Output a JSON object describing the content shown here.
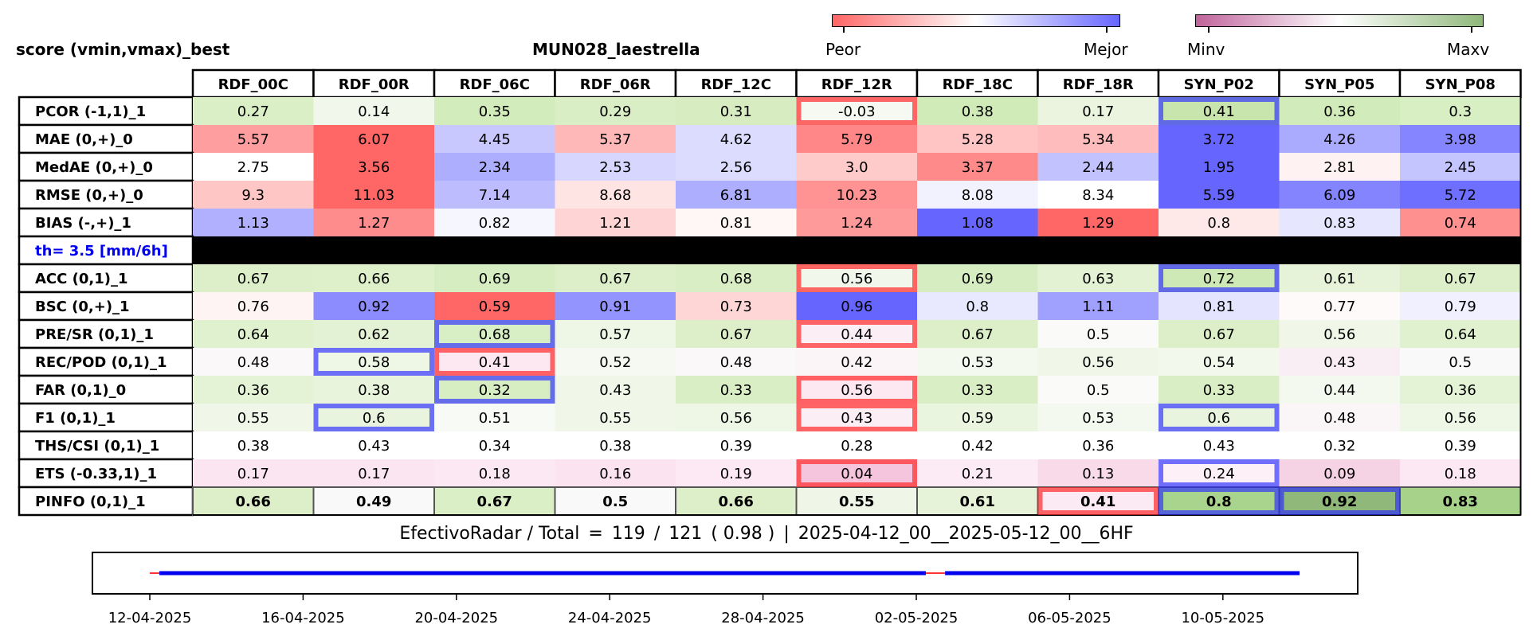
{
  "header": {
    "left_title": "score (vmin,vmax)_best",
    "center_title": "MUN028_laestrella"
  },
  "colorbars": [
    {
      "name": "peor-mejor",
      "left_label": "Peor",
      "right_label": "Mejor",
      "colors": [
        "#ff6666",
        "#ffffff",
        "#6666ff"
      ]
    },
    {
      "name": "minv-maxv",
      "left_label": "Minv",
      "right_label": "Maxv",
      "colors": [
        "#c0649c",
        "#ffffff",
        "#8fb87a"
      ]
    }
  ],
  "chart_data": [
    {
      "type": "table",
      "columns": [
        "RDF_00C",
        "RDF_00R",
        "RDF_06C",
        "RDF_06R",
        "RDF_12C",
        "RDF_12R",
        "RDF_18C",
        "RDF_18R",
        "SYN_P02",
        "SYN_P05",
        "SYN_P08"
      ],
      "rows": [
        {
          "label": "PCOR (-1,1)_1",
          "values": [
            "0.27",
            "0.14",
            "0.35",
            "0.29",
            "0.31",
            "-0.03",
            "0.38",
            "0.17",
            "0.41",
            "0.36",
            "0.3"
          ],
          "fills": [
            "#dbefc6",
            "#f1f7ea",
            "#d3ecbc",
            "#d9eec4",
            "#d7edc1",
            "#f5f9f1",
            "#d0eab8",
            "#eaf4de",
            "#c8e5ad",
            "#d2ebba",
            "#d8eec3"
          ],
          "highlights": [
            {
              "col": 5,
              "color": "red"
            },
            {
              "col": 8,
              "color": "blue"
            }
          ]
        },
        {
          "label": "MAE (0,+)_0",
          "values": [
            "5.57",
            "6.07",
            "4.45",
            "5.37",
            "4.62",
            "5.79",
            "5.28",
            "5.34",
            "3.72",
            "4.26",
            "3.98"
          ],
          "fills": [
            "#ff9e9e",
            "#ff6666",
            "#c8c8ff",
            "#ffb8b8",
            "#dcdcff",
            "#ff8787",
            "#ffc4c4",
            "#ffbcbc",
            "#6666ff",
            "#aaaaff",
            "#8585ff"
          ],
          "highlights": []
        },
        {
          "label": "MedAE (0,+)_0",
          "values": [
            "2.75",
            "3.56",
            "2.34",
            "2.53",
            "2.56",
            "3.0",
            "3.37",
            "2.44",
            "1.95",
            "2.81",
            "2.45"
          ],
          "fills": [
            "#ffffff",
            "#ff6666",
            "#aeaeff",
            "#d6d6ff",
            "#dcdcff",
            "#ffcaca",
            "#ff8a8a",
            "#c2c2ff",
            "#6666ff",
            "#fff2f2",
            "#c4c4ff"
          ],
          "highlights": []
        },
        {
          "label": "RMSE (0,+)_0",
          "values": [
            "9.3",
            "11.03",
            "7.14",
            "8.68",
            "6.81",
            "10.23",
            "8.08",
            "8.34",
            "5.59",
            "6.09",
            "5.72"
          ],
          "fills": [
            "#ffc6c6",
            "#ff6666",
            "#bcbcff",
            "#ffe4e4",
            "#aeaeff",
            "#ff9292",
            "#f2f2ff",
            "#ffffff",
            "#6666ff",
            "#8484ff",
            "#6e6eff"
          ],
          "highlights": []
        },
        {
          "label": "BIAS (-,+)_1",
          "values": [
            "1.13",
            "1.27",
            "0.82",
            "1.21",
            "0.81",
            "1.24",
            "1.08",
            "1.29",
            "0.8",
            "0.83",
            "0.74"
          ],
          "fills": [
            "#b0b0ff",
            "#ff8c8c",
            "#f6f6ff",
            "#ffd4d4",
            "#fff6f6",
            "#ff9a9a",
            "#6666ff",
            "#ff6666",
            "#ffe8e8",
            "#e6e6ff",
            "#ff9090"
          ],
          "highlights": []
        },
        {
          "label": "th= 3.5 [mm/6h]",
          "separator": true
        },
        {
          "label": "ACC (0,1)_1",
          "values": [
            "0.67",
            "0.66",
            "0.69",
            "0.67",
            "0.68",
            "0.56",
            "0.69",
            "0.63",
            "0.72",
            "0.61",
            "0.67"
          ],
          "fills": [
            "#dcefc9",
            "#ddf0ca",
            "#d6edc1",
            "#dcefc9",
            "#d9eec5",
            "#f1f7ea",
            "#d6edc1",
            "#e2f2d2",
            "#cfe9b6",
            "#e6f3d8",
            "#dcefc9"
          ],
          "highlights": [
            {
              "col": 5,
              "color": "red"
            },
            {
              "col": 8,
              "color": "blue"
            }
          ]
        },
        {
          "label": "BSC (0,+)_1",
          "values": [
            "0.76",
            "0.92",
            "0.59",
            "0.91",
            "0.73",
            "0.96",
            "0.8",
            "1.11",
            "0.81",
            "0.77",
            "0.79"
          ],
          "fills": [
            "#fff4f4",
            "#8c8cff",
            "#ff6666",
            "#9494ff",
            "#ffd6d6",
            "#6666ff",
            "#e8e8ff",
            "#a0a0ff",
            "#e4e4ff",
            "#fffafa",
            "#f0f0ff"
          ],
          "highlights": []
        },
        {
          "label": "PRE/SR (0,1)_1",
          "values": [
            "0.64",
            "0.62",
            "0.68",
            "0.57",
            "0.67",
            "0.44",
            "0.67",
            "0.5",
            "0.67",
            "0.56",
            "0.64"
          ],
          "fills": [
            "#e0f1cf",
            "#e3f2d4",
            "#d8eec4",
            "#eef6e5",
            "#dcefc9",
            "#fbeef5",
            "#dcefc9",
            "#fafaf8",
            "#dcefc9",
            "#f0f7e8",
            "#e0f1cf"
          ],
          "highlights": [
            {
              "col": 2,
              "color": "blue"
            },
            {
              "col": 5,
              "color": "red"
            }
          ]
        },
        {
          "label": "REC/POD (0,1)_1",
          "values": [
            "0.48",
            "0.58",
            "0.41",
            "0.52",
            "0.48",
            "0.42",
            "0.53",
            "0.56",
            "0.54",
            "0.43",
            "0.5"
          ],
          "fills": [
            "#faf8f9",
            "#eef6e6",
            "#fde8f2",
            "#f6f9f2",
            "#faf8f9",
            "#fbf5f8",
            "#f4f9ef",
            "#f0f7e9",
            "#f2f8ec",
            "#f9eef4",
            "#f9f9f9"
          ],
          "highlights": [
            {
              "col": 1,
              "color": "blue"
            },
            {
              "col": 2,
              "color": "red"
            }
          ]
        },
        {
          "label": "FAR (0,1)_0",
          "values": [
            "0.36",
            "0.38",
            "0.32",
            "0.43",
            "0.33",
            "0.56",
            "0.33",
            "0.5",
            "0.33",
            "0.44",
            "0.36"
          ],
          "fills": [
            "#e4f3d6",
            "#e8f4dc",
            "#d7edc2",
            "#f0f7e9",
            "#d9eec5",
            "#fde8f2",
            "#d9eec5",
            "#fafaf8",
            "#d9eec5",
            "#f4f9ef",
            "#e4f3d6"
          ],
          "highlights": [
            {
              "col": 2,
              "color": "blue"
            },
            {
              "col": 5,
              "color": "red"
            }
          ]
        },
        {
          "label": "F1 (0,1)_1",
          "values": [
            "0.55",
            "0.6",
            "0.51",
            "0.55",
            "0.56",
            "0.43",
            "0.59",
            "0.53",
            "0.6",
            "0.48",
            "0.56"
          ],
          "fills": [
            "#f0f7e9",
            "#e8f4dd",
            "#f8faf5",
            "#f0f7e9",
            "#eef6e6",
            "#fbeef5",
            "#eaf5df",
            "#f4f9ef",
            "#e8f4dd",
            "#faf6f8",
            "#eef6e6"
          ],
          "highlights": [
            {
              "col": 1,
              "color": "blue"
            },
            {
              "col": 5,
              "color": "red"
            },
            {
              "col": 8,
              "color": "blue"
            }
          ]
        },
        {
          "label": "THS/CSI (0,1)_1",
          "values": [
            "0.38",
            "0.43",
            "0.34",
            "0.38",
            "0.39",
            "0.28",
            "0.42",
            "0.36",
            "0.43",
            "0.32",
            "0.39"
          ],
          "fills": [
            "#ffffff",
            "#ffffff",
            "#ffffff",
            "#ffffff",
            "#ffffff",
            "#ffffff",
            "#ffffff",
            "#ffffff",
            "#ffffff",
            "#ffffff",
            "#ffffff"
          ],
          "highlights": []
        },
        {
          "label": "ETS (-0.33,1)_1",
          "values": [
            "0.17",
            "0.17",
            "0.18",
            "0.16",
            "0.19",
            "0.04",
            "0.21",
            "0.13",
            "0.24",
            "0.09",
            "0.18"
          ],
          "fills": [
            "#fbe5f0",
            "#fbe5f0",
            "#fce8f2",
            "#fbe3ef",
            "#fce9f3",
            "#f4c5dd",
            "#fcebf4",
            "#f8dae9",
            "#fdf0f6",
            "#f6d2e5",
            "#fce8f2"
          ],
          "highlights": [
            {
              "col": 5,
              "color": "red"
            },
            {
              "col": 8,
              "color": "blue"
            }
          ]
        },
        {
          "label": "PINFO (0,1)_1",
          "bold": true,
          "values": [
            "0.66",
            "0.49",
            "0.67",
            "0.5",
            "0.66",
            "0.55",
            "0.61",
            "0.41",
            "0.8",
            "0.92",
            "0.83"
          ],
          "fills": [
            "#dcefc9",
            "#f9f9f9",
            "#dbefc7",
            "#f9f9f9",
            "#dcefc9",
            "#eff6e8",
            "#e6f3d8",
            "#fbeaf3",
            "#a9d48d",
            "#8fb87a",
            "#a7d28a"
          ],
          "highlights": [
            {
              "col": 7,
              "color": "red"
            },
            {
              "col": 8,
              "color": "blue"
            },
            {
              "col": 9,
              "color": "blue"
            }
          ]
        }
      ]
    },
    {
      "type": "line",
      "title": "",
      "x_ticks": [
        "12-04-2025",
        "16-04-2025",
        "20-04-2025",
        "24-04-2025",
        "28-04-2025",
        "02-05-2025",
        "06-05-2025",
        "10-05-2025"
      ],
      "series": [
        {
          "color": "#0000ee",
          "segments": [
            [
              "12-04-2025 06:00",
              "02-05-2025 06:00"
            ],
            [
              "02-05-2025 18:00",
              "12-05-2025 00:00"
            ]
          ]
        },
        {
          "color": "#ff3333",
          "segments": [
            [
              "12-04-2025 00:00",
              "12-04-2025 06:00"
            ],
            [
              "02-05-2025 06:00",
              "02-05-2025 18:00"
            ]
          ]
        }
      ]
    }
  ],
  "caption": {
    "label": "EfectivoRadar / Total",
    "equals": "=",
    "effective": "119",
    "slash": "/",
    "total": "121",
    "ratio": "( 0.98 )",
    "separator": "|",
    "period": "2025-04-12_00__2025-05-12_00__6HF"
  }
}
